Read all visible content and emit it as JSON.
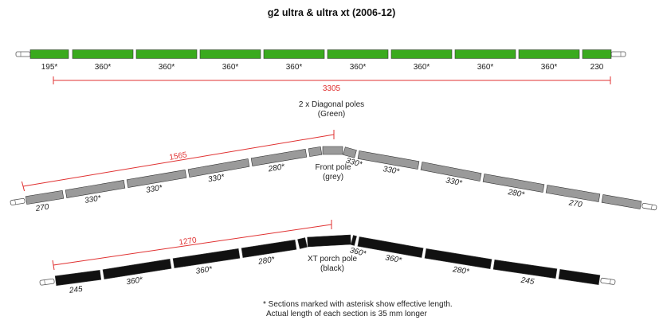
{
  "title": "g2 ultra & ultra xt (2006-12)",
  "colors": {
    "green": "#3aaa1e",
    "grey": "#9a9a9a",
    "black": "#111111",
    "dimension": "#e03030"
  },
  "green_pole": {
    "caption_line1": "2 x Diagonal poles",
    "caption_line2": "(Green)",
    "sections": [
      "195*",
      "360*",
      "360*",
      "360*",
      "360*",
      "360*",
      "360*",
      "360*",
      "360*",
      "230"
    ],
    "total": "3305"
  },
  "front_pole": {
    "caption_line1": "Front pole",
    "caption_line2": "(grey)",
    "left_sections": [
      "270",
      "330*",
      "330*",
      "330*",
      "280*"
    ],
    "right_sections": [
      "330*",
      "330*",
      "330*",
      "280*",
      "270"
    ],
    "half_length": "1565"
  },
  "porch_pole": {
    "caption_line1": "XT porch pole",
    "caption_line2": "(black)",
    "left_sections": [
      "245",
      "360*",
      "360*",
      "280*"
    ],
    "right_sections": [
      "360*",
      "360*",
      "280*",
      "245"
    ],
    "half_length": "1270"
  },
  "footnote_line1": "* Sections marked with asterisk show effective length.",
  "footnote_line2": "Actual length of each section is 35 mm longer"
}
